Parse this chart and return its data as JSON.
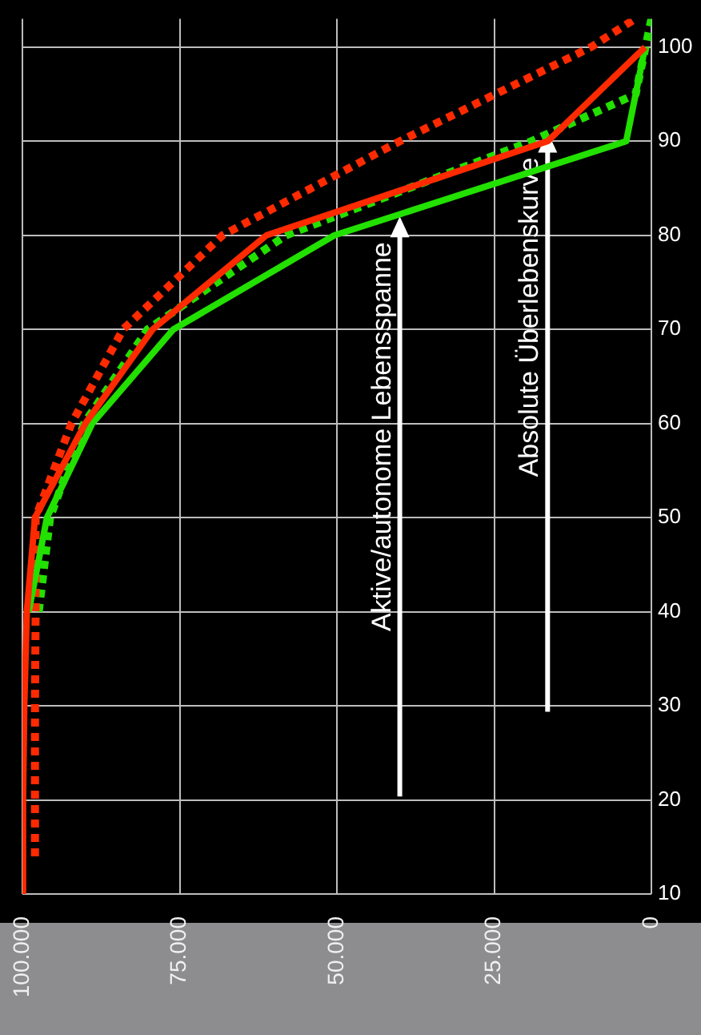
{
  "chart_data": {
    "type": "line",
    "ylim": [
      10,
      103
    ],
    "yticks": [
      10,
      20,
      30,
      40,
      50,
      60,
      70,
      80,
      90,
      100
    ],
    "xlim": [
      100000,
      0
    ],
    "xticks": [
      {
        "value": 100000,
        "label": "100.000"
      },
      {
        "value": 75000,
        "label": "75.000"
      },
      {
        "value": 50000,
        "label": "50.000"
      },
      {
        "value": 25000,
        "label": "25.000"
      },
      {
        "value": 0,
        "label": "0"
      }
    ],
    "grid": true,
    "marker": "none",
    "series": [
      {
        "color": "#22e000",
        "line_style": "dotted",
        "values": [
          40,
          50,
          60,
          70,
          80,
          90,
          95,
          103
        ],
        "x": [
          97400,
          95600,
          90200,
          80100,
          58100,
          19100,
          2500,
          0
        ]
      },
      {
        "color": "#ff2a00",
        "line_style": "dotted",
        "values": [
          14,
          20,
          30,
          40,
          50,
          60,
          70,
          80,
          90,
          100,
          103
        ],
        "x": [
          98000,
          98000,
          98000,
          97900,
          97900,
          92200,
          84000,
          68200,
          40000,
          9600,
          2600
        ]
      },
      {
        "color": "#22e000",
        "line_style": "solid",
        "values": [
          40,
          50,
          60,
          70,
          80,
          90,
          100
        ],
        "x": [
          99000,
          96100,
          88900,
          76000,
          50400,
          4000,
          1000
        ]
      },
      {
        "color": "#ff2a00",
        "line_style": "solid",
        "values": [
          10,
          20,
          30,
          40,
          50,
          60,
          70,
          80,
          90,
          100
        ],
        "x": [
          100000,
          99900,
          99700,
          99300,
          98000,
          90000,
          79300,
          61200,
          16500,
          1000
        ]
      }
    ],
    "annotations": [
      {
        "text": "Aktive/autonome Lebensspanne",
        "x": 40000,
        "y": 82
      },
      {
        "text": "Absolute Überlebenskurve",
        "x": 16500,
        "y": 91
      }
    ]
  }
}
